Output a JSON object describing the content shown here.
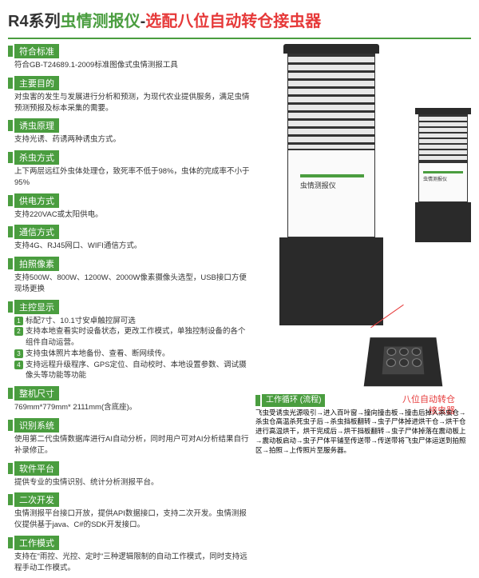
{
  "title": {
    "prefix": "R4系列",
    "main": "虫情测报仪",
    "dash": "-",
    "config": "选配八位自动转仓接虫器"
  },
  "colors": {
    "green": "#4a9d3f",
    "red": "#e63939",
    "dark": "#2a2a2a"
  },
  "sections": [
    {
      "title": "符合标准",
      "body": "符合GB-T24689.1-2009标准图像式虫情测报工具"
    },
    {
      "title": "主要目的",
      "body": "对虫害的发生与发展进行分析和预测，为现代农业提供服务，满足虫情预测预报及标本采集的需要。"
    },
    {
      "title": "诱虫原理",
      "body": "支持光诱、药诱两种诱虫方式。"
    },
    {
      "title": "杀虫方式",
      "body": "上下两层远红外虫体处理仓，致死率不低于98%，虫体的完成率不小于95%"
    },
    {
      "title": "供电方式",
      "body": "支持220VAC或太阳供电。"
    },
    {
      "title": "通信方式",
      "body": "支持4G、RJ45网口、WIFI通信方式。"
    },
    {
      "title": "拍照像素",
      "body": "支持500W、800W、1200W、2000W像素摄像头选型，USB接口方便现场更换"
    },
    {
      "title": "主控显示",
      "list": [
        "标配7寸、10.1寸安卓触控屏可选",
        "支持本地查看实时设备状态，更改工作模式，单独控制设备的各个组件自动运营。",
        "支持虫体照片本地备份、查看、断网续传。",
        "支持远程升级程序、GPS定位、自动校时、本地设置参数、调试摄像头等功能等功能"
      ]
    },
    {
      "title": "整机尺寸",
      "body": "769mm*779mm* 2111mm(含底座)。"
    },
    {
      "title": "识别系统",
      "body": "使用第二代虫情数据库进行AI自动分析，同时用户可对AI分析结果自行补录修正。"
    },
    {
      "title": "软件平台",
      "body": "提供专业的虫情识别、统计分析测报平台。"
    },
    {
      "title": "二次开发",
      "body": "虫情测报平台接口开放，提供API数据接口，支持二次开发。虫情测报仪提供基于java、C#的SDK开发接口。"
    },
    {
      "title": "工作模式",
      "body": "支持在\"雨控、光控、定时\"三种逻辑限制的自动工作模式，同时支持远程手动工作模式。"
    }
  ],
  "device_label": "虫情测报仪",
  "detail_label_line1": "八位自动转仓",
  "detail_label_line2": "接虫器",
  "workflow": {
    "title": "工作循环 (流程)",
    "body": "飞虫受诱虫光源吸引→进入百叶窗→撞向撞击板→撞击后掉入杀虫仓→杀虫仓高温杀死虫子后→杀虫挡板翻转→虫子尸体掉进烘干仓→烘干仓进行高温烘干，烘干完成后→烘干挡板翻转→虫子尸体掉落在震动板上→震动板启动→虫子尸体平铺至传送带→传送带将飞虫尸体运送到拍照区→拍照→上传照片至服务器。"
  }
}
